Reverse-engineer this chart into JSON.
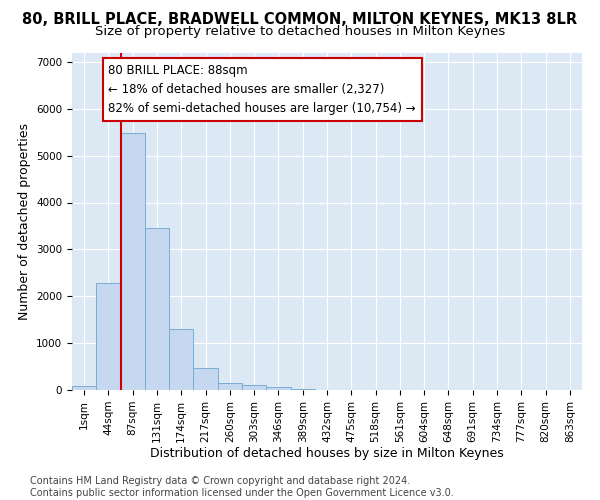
{
  "title1": "80, BRILL PLACE, BRADWELL COMMON, MILTON KEYNES, MK13 8LR",
  "title2": "Size of property relative to detached houses in Milton Keynes",
  "xlabel": "Distribution of detached houses by size in Milton Keynes",
  "ylabel": "Number of detached properties",
  "footnote": "Contains HM Land Registry data © Crown copyright and database right 2024.\nContains public sector information licensed under the Open Government Licence v3.0.",
  "bar_labels": [
    "1sqm",
    "44sqm",
    "87sqm",
    "131sqm",
    "174sqm",
    "217sqm",
    "260sqm",
    "303sqm",
    "346sqm",
    "389sqm",
    "432sqm",
    "475sqm",
    "518sqm",
    "561sqm",
    "604sqm",
    "648sqm",
    "691sqm",
    "734sqm",
    "777sqm",
    "820sqm",
    "863sqm"
  ],
  "bar_values": [
    80,
    2280,
    5480,
    3450,
    1310,
    470,
    160,
    100,
    60,
    30,
    0,
    0,
    0,
    0,
    0,
    0,
    0,
    0,
    0,
    0,
    0
  ],
  "bar_color": "#c5d8f0",
  "bar_edge_color": "#7aadd4",
  "vline_color": "#cc0000",
  "annotation_text": "80 BRILL PLACE: 88sqm\n← 18% of detached houses are smaller (2,327)\n82% of semi-detached houses are larger (10,754) →",
  "annotation_box_color": "#ffffff",
  "annotation_box_edge": "#cc0000",
  "ylim": [
    0,
    7200
  ],
  "yticks": [
    0,
    1000,
    2000,
    3000,
    4000,
    5000,
    6000,
    7000
  ],
  "plot_bg_color": "#dce9f5",
  "fig_bg_color": "#ffffff",
  "grid_color": "#ffffff",
  "title1_fontsize": 10.5,
  "title2_fontsize": 9.5,
  "axis_label_fontsize": 9,
  "tick_fontsize": 7.5,
  "footnote_fontsize": 7,
  "annotation_fontsize": 8.5
}
